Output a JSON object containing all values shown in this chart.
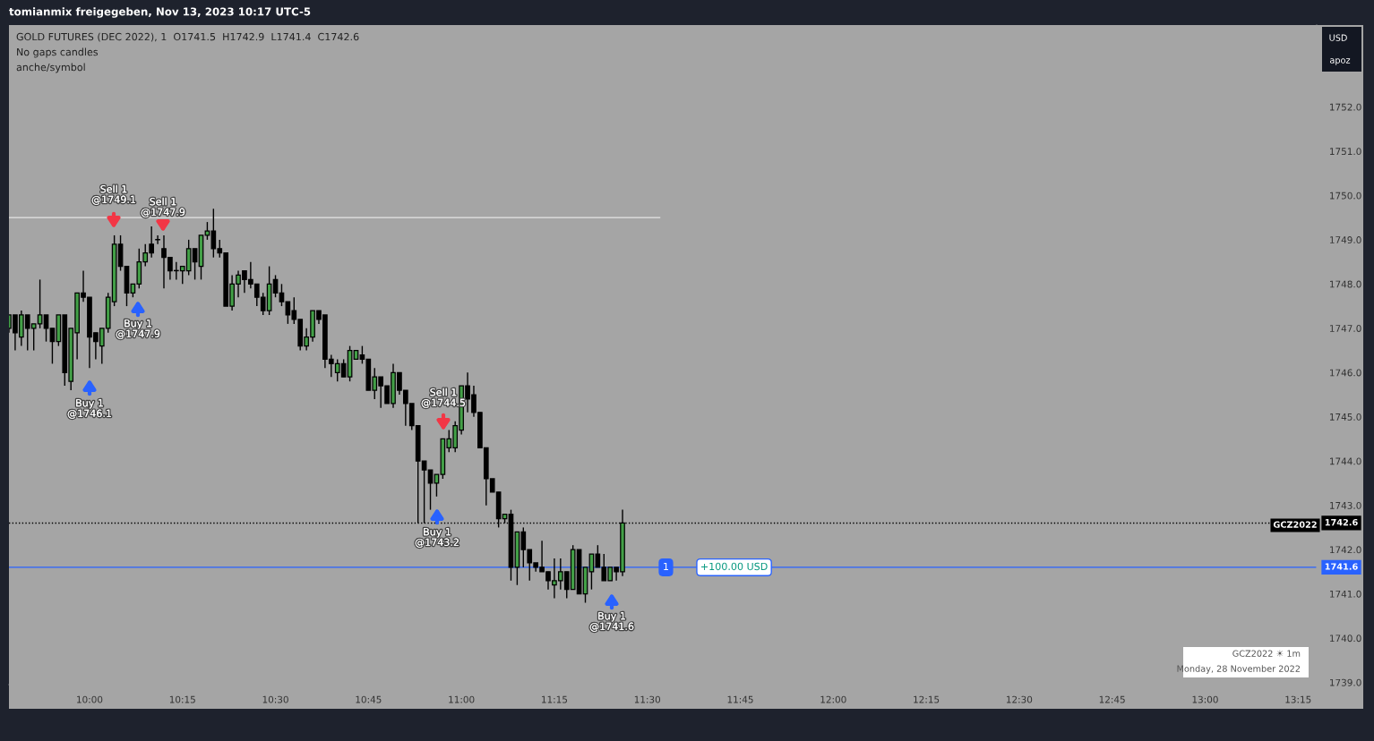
{
  "chart_data": {
    "type": "candlestick",
    "title": "tomianmix freigegeben, Nov 13, 2023 10:17 UTC-5",
    "subtitle": "GOLD FUTURES (DEC 2022), 1  O1741.5  H1742.9  L1741.4  C1742.6",
    "x": [
      "2022-11-28T09:47",
      "2022-11-28T09:48",
      "2022-11-28T09:49",
      "2022-11-28T09:50",
      "2022-11-28T09:51",
      "2022-11-28T09:52",
      "2022-11-28T09:53",
      "2022-11-28T09:54",
      "2022-11-28T09:55",
      "2022-11-28T09:56",
      "2022-11-28T09:57",
      "2022-11-28T09:58",
      "2022-11-28T09:59",
      "2022-11-28T10:00",
      "2022-11-28T10:01",
      "2022-11-28T10:02",
      "2022-11-28T10:03",
      "2022-11-28T10:04",
      "2022-11-28T10:05",
      "2022-11-28T10:06",
      "2022-11-28T10:07",
      "2022-11-28T10:08",
      "2022-11-28T10:09",
      "2022-11-28T10:10",
      "2022-11-28T10:11",
      "2022-11-28T10:12",
      "2022-11-28T10:13",
      "2022-11-28T10:14",
      "2022-11-28T10:15",
      "2022-11-28T10:16",
      "2022-11-28T10:17",
      "2022-11-28T10:18",
      "2022-11-28T10:19",
      "2022-11-28T10:20",
      "2022-11-28T10:21",
      "2022-11-28T10:22",
      "2022-11-28T10:23",
      "2022-11-28T10:24",
      "2022-11-28T10:25",
      "2022-11-28T10:26",
      "2022-11-28T10:27",
      "2022-11-28T10:28",
      "2022-11-28T10:29",
      "2022-11-28T10:30",
      "2022-11-28T10:31",
      "2022-11-28T10:32",
      "2022-11-28T10:33",
      "2022-11-28T10:34",
      "2022-11-28T10:35",
      "2022-11-28T10:36",
      "2022-11-28T10:37",
      "2022-11-28T10:38",
      "2022-11-28T10:39",
      "2022-11-28T10:40",
      "2022-11-28T10:41",
      "2022-11-28T10:42",
      "2022-11-28T10:43",
      "2022-11-28T10:44",
      "2022-11-28T10:45",
      "2022-11-28T10:46",
      "2022-11-28T10:47",
      "2022-11-28T10:48",
      "2022-11-28T10:49",
      "2022-11-28T10:50",
      "2022-11-28T10:51",
      "2022-11-28T10:52",
      "2022-11-28T10:53",
      "2022-11-28T10:54",
      "2022-11-28T10:55",
      "2022-11-28T10:56",
      "2022-11-28T10:57",
      "2022-11-28T10:58",
      "2022-11-28T10:59",
      "2022-11-28T11:00",
      "2022-11-28T11:01",
      "2022-11-28T11:02",
      "2022-11-28T11:03",
      "2022-11-28T11:04",
      "2022-11-28T11:05",
      "2022-11-28T11:06",
      "2022-11-28T11:07",
      "2022-11-28T11:08",
      "2022-11-28T11:09",
      "2022-11-28T11:10",
      "2022-11-28T11:11",
      "2022-11-28T11:12",
      "2022-11-28T11:13",
      "2022-11-28T11:14",
      "2022-11-28T11:15",
      "2022-11-28T11:16",
      "2022-11-28T11:17",
      "2022-11-28T11:18",
      "2022-11-28T11:19",
      "2022-11-28T11:20",
      "2022-11-28T11:21",
      "2022-11-28T11:22",
      "2022-11-28T11:23",
      "2022-11-28T11:24",
      "2022-11-28T11:25",
      "2022-11-28T11:26"
    ],
    "ohlc": [
      [
        1747.0,
        1747.3,
        1746.9,
        1747.3
      ],
      [
        1747.3,
        1747.3,
        1746.5,
        1746.9
      ],
      [
        1746.8,
        1747.4,
        1746.6,
        1747.3
      ],
      [
        1747.3,
        1747.3,
        1746.5,
        1747.0
      ],
      [
        1747.0,
        1747.1,
        1746.5,
        1747.1
      ],
      [
        1747.1,
        1748.1,
        1747.0,
        1747.3
      ],
      [
        1747.3,
        1747.3,
        1746.7,
        1747.0
      ],
      [
        1747.0,
        1747.0,
        1746.2,
        1746.7
      ],
      [
        1746.7,
        1747.3,
        1746.6,
        1747.3
      ],
      [
        1747.3,
        1747.3,
        1745.7,
        1746.0
      ],
      [
        1745.8,
        1747.0,
        1745.6,
        1747.0
      ],
      [
        1746.9,
        1747.8,
        1746.3,
        1747.8
      ],
      [
        1747.8,
        1748.3,
        1747.6,
        1747.7
      ],
      [
        1747.7,
        1747.7,
        1746.1,
        1746.8
      ],
      [
        1746.9,
        1746.9,
        1746.3,
        1746.7
      ],
      [
        1746.6,
        1747.0,
        1746.2,
        1747.0
      ],
      [
        1747.0,
        1747.8,
        1746.9,
        1747.7
      ],
      [
        1747.6,
        1749.1,
        1747.5,
        1748.9
      ],
      [
        1748.9,
        1749.1,
        1748.3,
        1748.4
      ],
      [
        1748.4,
        1748.4,
        1747.5,
        1747.8
      ],
      [
        1747.8,
        1748.0,
        1747.7,
        1748.0
      ],
      [
        1748.0,
        1748.8,
        1747.9,
        1748.5
      ],
      [
        1748.5,
        1748.9,
        1748.4,
        1748.7
      ],
      [
        1748.9,
        1749.3,
        1748.6,
        1748.7
      ],
      [
        1749.0,
        1749.1,
        1748.9,
        1749.0
      ],
      [
        1748.8,
        1749.1,
        1747.9,
        1748.6
      ],
      [
        1748.6,
        1748.6,
        1748.1,
        1748.3
      ],
      [
        1748.3,
        1748.5,
        1748.1,
        1748.3
      ],
      [
        1748.3,
        1748.4,
        1748.0,
        1748.4
      ],
      [
        1748.3,
        1749.0,
        1748.2,
        1748.8
      ],
      [
        1748.8,
        1748.8,
        1748.1,
        1748.5
      ],
      [
        1748.4,
        1749.1,
        1748.1,
        1749.1
      ],
      [
        1749.1,
        1749.4,
        1749.0,
        1749.2
      ],
      [
        1749.2,
        1749.7,
        1748.6,
        1748.8
      ],
      [
        1748.8,
        1749.0,
        1748.6,
        1748.7
      ],
      [
        1748.7,
        1748.7,
        1747.5,
        1747.5
      ],
      [
        1747.5,
        1748.2,
        1747.4,
        1748.0
      ],
      [
        1748.0,
        1748.3,
        1747.7,
        1748.2
      ],
      [
        1748.3,
        1748.3,
        1747.8,
        1748.1
      ],
      [
        1748.1,
        1748.5,
        1747.9,
        1748.0
      ],
      [
        1748.0,
        1748.0,
        1747.5,
        1747.7
      ],
      [
        1747.7,
        1747.8,
        1747.3,
        1747.4
      ],
      [
        1747.4,
        1748.4,
        1747.3,
        1748.0
      ],
      [
        1748.1,
        1748.2,
        1747.7,
        1747.8
      ],
      [
        1747.8,
        1748.0,
        1747.5,
        1747.6
      ],
      [
        1747.6,
        1747.6,
        1747.1,
        1747.3
      ],
      [
        1747.4,
        1747.7,
        1747.1,
        1747.2
      ],
      [
        1747.2,
        1747.2,
        1746.5,
        1746.6
      ],
      [
        1746.6,
        1747.0,
        1746.5,
        1746.8
      ],
      [
        1746.8,
        1747.4,
        1746.7,
        1747.4
      ],
      [
        1747.4,
        1747.4,
        1747.1,
        1747.2
      ],
      [
        1747.3,
        1747.3,
        1746.1,
        1746.3
      ],
      [
        1746.3,
        1746.4,
        1745.9,
        1746.2
      ],
      [
        1746.0,
        1746.3,
        1745.8,
        1746.2
      ],
      [
        1746.2,
        1746.3,
        1745.9,
        1745.9
      ],
      [
        1745.9,
        1746.6,
        1745.8,
        1746.5
      ],
      [
        1746.3,
        1746.5,
        1746.3,
        1746.5
      ],
      [
        1746.4,
        1746.6,
        1746.2,
        1746.3
      ],
      [
        1746.3,
        1746.3,
        1745.6,
        1745.6
      ],
      [
        1745.6,
        1746.1,
        1745.4,
        1745.9
      ],
      [
        1745.9,
        1745.9,
        1745.2,
        1745.7
      ],
      [
        1745.7,
        1745.7,
        1745.3,
        1745.3
      ],
      [
        1745.3,
        1746.2,
        1745.2,
        1746.0
      ],
      [
        1746.0,
        1746.0,
        1745.5,
        1745.6
      ],
      [
        1745.6,
        1745.6,
        1744.8,
        1745.3
      ],
      [
        1745.3,
        1745.3,
        1744.7,
        1744.8
      ],
      [
        1744.8,
        1744.8,
        1742.6,
        1744.0
      ],
      [
        1744.0,
        1744.0,
        1742.6,
        1743.8
      ],
      [
        1743.8,
        1743.8,
        1742.9,
        1743.5
      ],
      [
        1743.5,
        1743.7,
        1743.2,
        1743.7
      ],
      [
        1743.7,
        1744.5,
        1743.6,
        1744.5
      ],
      [
        1744.3,
        1744.7,
        1744.2,
        1744.5
      ],
      [
        1744.3,
        1744.9,
        1744.2,
        1744.8
      ],
      [
        1744.7,
        1745.7,
        1744.6,
        1745.7
      ],
      [
        1745.7,
        1746.0,
        1745.1,
        1745.4
      ],
      [
        1745.5,
        1745.7,
        1745.0,
        1745.1
      ],
      [
        1745.1,
        1745.1,
        1744.3,
        1744.3
      ],
      [
        1744.3,
        1744.3,
        1743.0,
        1743.6
      ],
      [
        1743.6,
        1743.6,
        1743.3,
        1743.3
      ],
      [
        1743.3,
        1743.3,
        1742.5,
        1742.7
      ],
      [
        1742.7,
        1742.8,
        1742.6,
        1742.8
      ],
      [
        1742.8,
        1742.9,
        1741.3,
        1741.6
      ],
      [
        1741.6,
        1742.4,
        1741.2,
        1742.4
      ],
      [
        1742.4,
        1742.5,
        1741.6,
        1742.0
      ],
      [
        1742.0,
        1742.0,
        1741.3,
        1741.7
      ],
      [
        1741.7,
        1741.7,
        1741.5,
        1741.6
      ],
      [
        1741.6,
        1742.2,
        1741.5,
        1741.5
      ],
      [
        1741.5,
        1741.5,
        1741.1,
        1741.3
      ],
      [
        1741.2,
        1741.8,
        1740.9,
        1741.3
      ],
      [
        1741.3,
        1741.8,
        1741.1,
        1741.5
      ],
      [
        1741.5,
        1741.5,
        1740.9,
        1741.1
      ],
      [
        1741.1,
        1742.1,
        1741.1,
        1742.0
      ],
      [
        1742.0,
        1742.0,
        1741.0,
        1741.0
      ],
      [
        1741.0,
        1741.6,
        1740.8,
        1741.6
      ],
      [
        1741.5,
        1741.9,
        1741.1,
        1741.9
      ],
      [
        1741.9,
        1742.1,
        1741.6,
        1741.6
      ],
      [
        1741.6,
        1741.9,
        1741.3,
        1741.3
      ],
      [
        1741.3,
        1741.6,
        1741.3,
        1741.6
      ],
      [
        1741.6,
        1741.6,
        1741.3,
        1741.5
      ],
      [
        1741.5,
        1742.9,
        1741.4,
        1742.6
      ]
    ],
    "series": [
      {
        "type": "line",
        "color": "#e6e6e6",
        "x": [
          "2022-11-28T09:47",
          "2022-11-28T11:32"
        ],
        "values": [
          1749.5,
          1749.5
        ]
      }
    ],
    "xlim": [
      "2022-11-28T09:47",
      "2022-11-28T13:18"
    ],
    "xticks": [
      {
        "value": "2022-11-28T10:00",
        "label": "10:00"
      },
      {
        "value": "2022-11-28T10:15",
        "label": "10:15"
      },
      {
        "value": "2022-11-28T10:30",
        "label": "10:30"
      },
      {
        "value": "2022-11-28T10:45",
        "label": "10:45"
      },
      {
        "value": "2022-11-28T11:00",
        "label": "11:00"
      },
      {
        "value": "2022-11-28T11:15",
        "label": "11:15"
      },
      {
        "value": "2022-11-28T11:30",
        "label": "11:30"
      },
      {
        "value": "2022-11-28T11:45",
        "label": "11:45"
      },
      {
        "value": "2022-11-28T12:00",
        "label": "12:00"
      },
      {
        "value": "2022-11-28T12:15",
        "label": "12:15"
      },
      {
        "value": "2022-11-28T12:30",
        "label": "12:30"
      },
      {
        "value": "2022-11-28T12:45",
        "label": "12:45"
      },
      {
        "value": "2022-11-28T13:00",
        "label": "13:00"
      },
      {
        "value": "2022-11-28T13:15",
        "label": "13:15"
      }
    ],
    "ylim": [
      1738.95,
      1753.85
    ],
    "yticks": [
      {
        "value": 1739,
        "label": "1739.0"
      },
      {
        "value": 1740,
        "label": "1740.0"
      },
      {
        "value": 1741,
        "label": "1741.0"
      },
      {
        "value": 1742,
        "label": "1742.0"
      },
      {
        "value": 1743,
        "label": "1743.0"
      },
      {
        "value": 1744,
        "label": "1744.0"
      },
      {
        "value": 1745,
        "label": "1745.0"
      },
      {
        "value": 1746,
        "label": "1746.0"
      },
      {
        "value": 1747,
        "label": "1747.0"
      },
      {
        "value": 1748,
        "label": "1748.0"
      },
      {
        "value": 1749,
        "label": "1749.0"
      },
      {
        "value": 1750,
        "label": "1750.0"
      },
      {
        "value": 1751,
        "label": "1751.0"
      },
      {
        "value": 1752,
        "label": "1752.0"
      }
    ],
    "ref_lines": [
      {
        "axis": "y",
        "value": 1742.6,
        "label": "1742.6",
        "color": "#000000",
        "line_style": "dotted"
      },
      {
        "axis": "y",
        "value": 1741.6,
        "label": "1741.6",
        "color": "#2962ff",
        "line_style": "solid"
      }
    ],
    "annotations": [
      "No gaps candles",
      "anche/symbol",
      "USD",
      "apoz",
      "GCZ2022 ☀ 1m",
      "Monday, 28 November 2022",
      "GCZ2022",
      "Sell 1\n@1749.1",
      "Sell 1\n@1747.9",
      "Sell 1\n@1744.5",
      "Buy 1\n@1746.1",
      "Buy 1\n@1747.9",
      "Buy 1\n@1743.2",
      "Buy 1\n@1741.6",
      {
        "text": "1",
        "x": "2022-11-28T11:33",
        "y": 1741.6
      },
      {
        "text": "+100.00 USD",
        "x": "2022-11-28T11:44",
        "y": 1741.6
      }
    ]
  }
}
